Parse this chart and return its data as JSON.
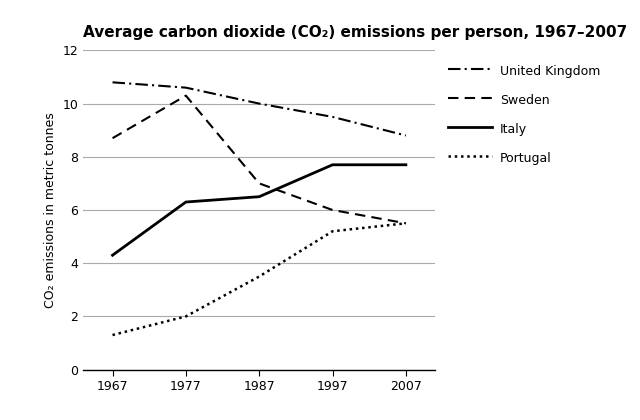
{
  "title": "Average carbon dioxide (CO₂) emissions per person, 1967–2007",
  "ylabel": "CO₂ emissions in metric tonnes",
  "years": [
    1967,
    1977,
    1987,
    1997,
    2007
  ],
  "series": {
    "United Kingdom": {
      "values": [
        10.8,
        10.6,
        10.0,
        9.5,
        8.8
      ],
      "linestyle": "dashdot",
      "linewidth": 1.5
    },
    "Sweden": {
      "values": [
        8.7,
        10.3,
        7.0,
        6.0,
        5.5
      ],
      "linestyle": "dashed",
      "linewidth": 1.5
    },
    "Italy": {
      "values": [
        4.3,
        6.3,
        6.5,
        7.7,
        7.7
      ],
      "linestyle": "solid",
      "linewidth": 2.0
    },
    "Portugal": {
      "values": [
        1.3,
        2.0,
        3.5,
        5.2,
        5.5
      ],
      "linestyle": "dotted",
      "linewidth": 1.8
    }
  },
  "xlim": [
    1963,
    2011
  ],
  "ylim": [
    0,
    12
  ],
  "yticks": [
    0,
    2,
    4,
    6,
    8,
    10,
    12
  ],
  "xticks": [
    1967,
    1977,
    1987,
    1997,
    2007
  ],
  "color": "black",
  "background_color": "white",
  "grid_color": "#aaaaaa",
  "title_fontsize": 11,
  "axis_label_fontsize": 9,
  "tick_fontsize": 9,
  "legend_fontsize": 9
}
